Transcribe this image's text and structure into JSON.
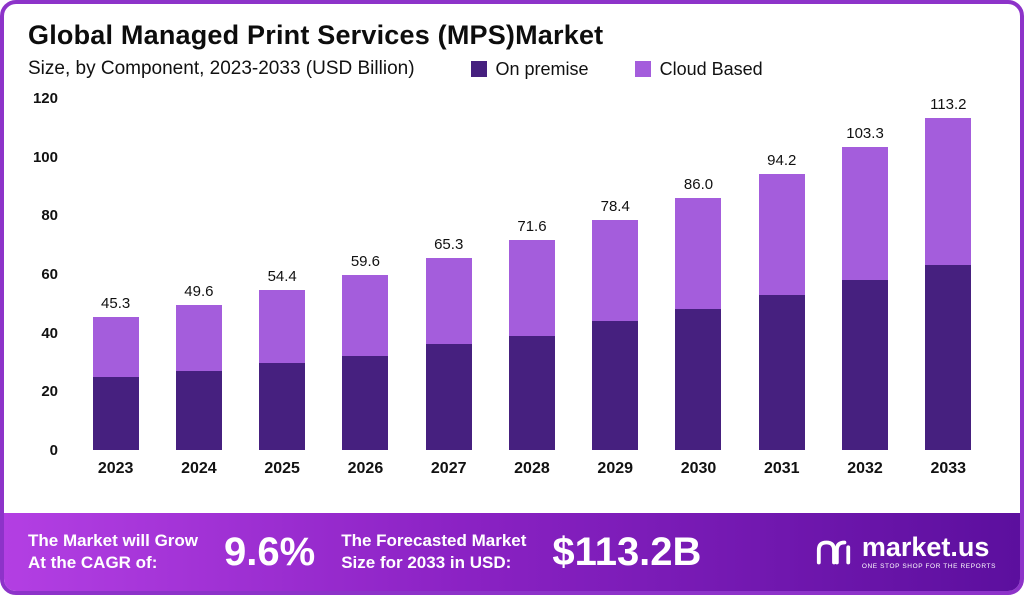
{
  "header": {
    "title": "Global Managed Print Services (MPS)Market",
    "subtitle": "Size, by Component, 2023-2033 (USD Billion)"
  },
  "legend": [
    {
      "label": "On premise",
      "color": "#46207f"
    },
    {
      "label": "Cloud Based",
      "color": "#a45ddc"
    }
  ],
  "chart_data": {
    "type": "bar",
    "stacked": true,
    "title": "Global Managed Print Services (MPS) Market",
    "subtitle": "Size, by Component, 2023-2033 (USD Billion)",
    "xlabel": "",
    "ylabel": "USD Billion",
    "ylim": [
      0,
      120
    ],
    "yticks": [
      0,
      20,
      40,
      60,
      80,
      100,
      120
    ],
    "grid": false,
    "legend_position": "top",
    "categories": [
      "2023",
      "2024",
      "2025",
      "2026",
      "2027",
      "2028",
      "2029",
      "2030",
      "2031",
      "2032",
      "2033"
    ],
    "series": [
      {
        "name": "On premise",
        "color": "#46207f",
        "values": [
          25,
          27,
          29.5,
          32,
          36,
          39,
          44,
          48,
          53,
          58,
          63
        ]
      },
      {
        "name": "Cloud Based",
        "color": "#a45ddc",
        "values": [
          20.3,
          22.6,
          24.9,
          27.6,
          29.3,
          32.6,
          34.4,
          38.0,
          41.2,
          45.3,
          50.2
        ]
      }
    ],
    "totals": [
      "45.3",
      "49.6",
      "54.4",
      "59.6",
      "65.3",
      "71.6",
      "78.4",
      "86.0",
      "94.2",
      "103.3",
      "113.2"
    ]
  },
  "banner": {
    "left_line1": "The Market will Grow",
    "left_line2": "At the CAGR of:",
    "cagr": "9.6%",
    "right_line1": "The Forecasted Market",
    "right_line2": "Size for 2033 in USD:",
    "forecast": "$113.2B",
    "logo_text": "market.us",
    "logo_tagline": "ONE STOP SHOP FOR THE REPORTS"
  }
}
